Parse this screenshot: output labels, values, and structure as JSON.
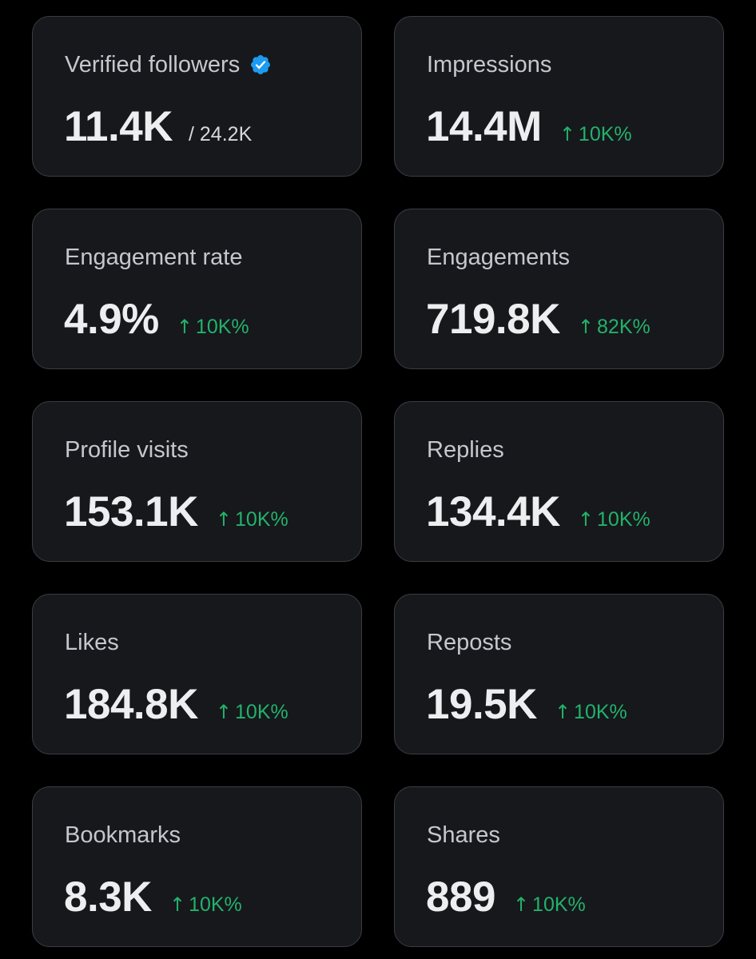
{
  "colors": {
    "background": "#000000",
    "card": "#16181c",
    "card_border": "#3a3d42",
    "label": "#c4c8cd",
    "value": "#eceef0",
    "positive": "#23b26b",
    "verified": "#1d9bf0"
  },
  "cards": [
    {
      "label": "Verified followers",
      "value": "11.4K",
      "sub": "/ 24.2K",
      "icon": "verified-badge-icon"
    },
    {
      "label": "Impressions",
      "value": "14.4M",
      "delta": "10K%"
    },
    {
      "label": "Engagement rate",
      "value": "4.9%",
      "delta": "10K%"
    },
    {
      "label": "Engagements",
      "value": "719.8K",
      "delta": "82K%"
    },
    {
      "label": "Profile visits",
      "value": "153.1K",
      "delta": "10K%"
    },
    {
      "label": "Replies",
      "value": "134.4K",
      "delta": "10K%"
    },
    {
      "label": "Likes",
      "value": "184.8K",
      "delta": "10K%"
    },
    {
      "label": "Reposts",
      "value": "19.5K",
      "delta": "10K%"
    },
    {
      "label": "Bookmarks",
      "value": "8.3K",
      "delta": "10K%"
    },
    {
      "label": "Shares",
      "value": "889",
      "delta": "10K%"
    }
  ],
  "delta_arrow": "↑"
}
